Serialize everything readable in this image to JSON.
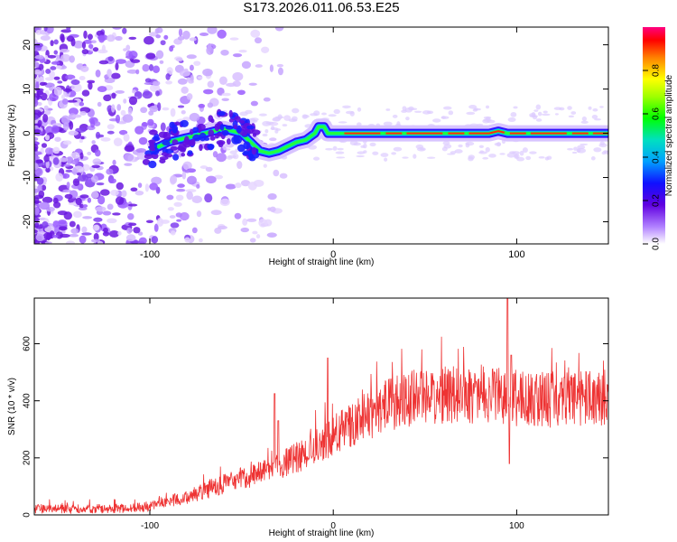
{
  "title": "S173.2026.011.06.53.E25",
  "chart_data": [
    {
      "type": "heatmap",
      "xlabel": "Height of straight line (km)",
      "ylabel": "Frequency (Hz)",
      "xlim": [
        -163,
        150
      ],
      "ylim": [
        -25,
        24
      ],
      "xticks": [
        -100,
        0,
        100
      ],
      "yticks": [
        -20,
        -10,
        0,
        10,
        20
      ],
      "colorbar": {
        "label": "Normalized spectral amplitude",
        "range": [
          0,
          1
        ],
        "ticks": [
          "0.0",
          "0.2",
          "0.4",
          "0.6",
          "0.8"
        ],
        "tick_values": [
          0.0,
          0.2,
          0.4,
          0.6,
          0.8
        ]
      },
      "ridge": {
        "x": [
          -100,
          -90,
          -80,
          -70,
          -60,
          -50,
          -45,
          -40,
          -35,
          -30,
          -25,
          -20,
          -15,
          -10,
          -8,
          -5,
          -3,
          0,
          5,
          10,
          20,
          40,
          60,
          80,
          85,
          90,
          95,
          100,
          120,
          140,
          150
        ],
        "y": [
          -4,
          -2,
          -1,
          0,
          1,
          0,
          -2,
          -4,
          -4.5,
          -4,
          -3,
          -2,
          -1.5,
          0,
          1.5,
          1.5,
          0,
          0,
          0,
          0,
          0,
          0,
          0,
          0,
          0,
          0.5,
          0,
          0,
          0,
          0,
          0
        ]
      }
    },
    {
      "type": "line",
      "xlabel": "Height of straight line (km)",
      "ylabel": "SNR (10 * v/v)",
      "xlim": [
        -163,
        150
      ],
      "ylim": [
        0,
        760
      ],
      "xticks": [
        -100,
        0,
        100
      ],
      "yticks": [
        0,
        200,
        400,
        600
      ],
      "color": "#ee3333",
      "baseline": {
        "x": [
          -163,
          -130,
          -110,
          -100,
          -90,
          -80,
          -70,
          -60,
          -50,
          -40,
          -30,
          -20,
          -10,
          0,
          10,
          20,
          30,
          40,
          50,
          60,
          70,
          80,
          90,
          100,
          110,
          120,
          130,
          140,
          150
        ],
        "y": [
          20,
          20,
          22,
          30,
          45,
          60,
          80,
          105,
          125,
          140,
          165,
          195,
          230,
          270,
          310,
          345,
          375,
          395,
          405,
          410,
          410,
          410,
          405,
          400,
          395,
          395,
          395,
          400,
          405
        ]
      },
      "spikes": [
        {
          "x": -32,
          "y": 425
        },
        {
          "x": -30,
          "y": 330
        },
        {
          "x": -3,
          "y": 550
        },
        {
          "x": 95,
          "y": 760
        },
        {
          "x": 96,
          "y": 180
        },
        {
          "x": 97,
          "y": 560
        }
      ]
    }
  ]
}
